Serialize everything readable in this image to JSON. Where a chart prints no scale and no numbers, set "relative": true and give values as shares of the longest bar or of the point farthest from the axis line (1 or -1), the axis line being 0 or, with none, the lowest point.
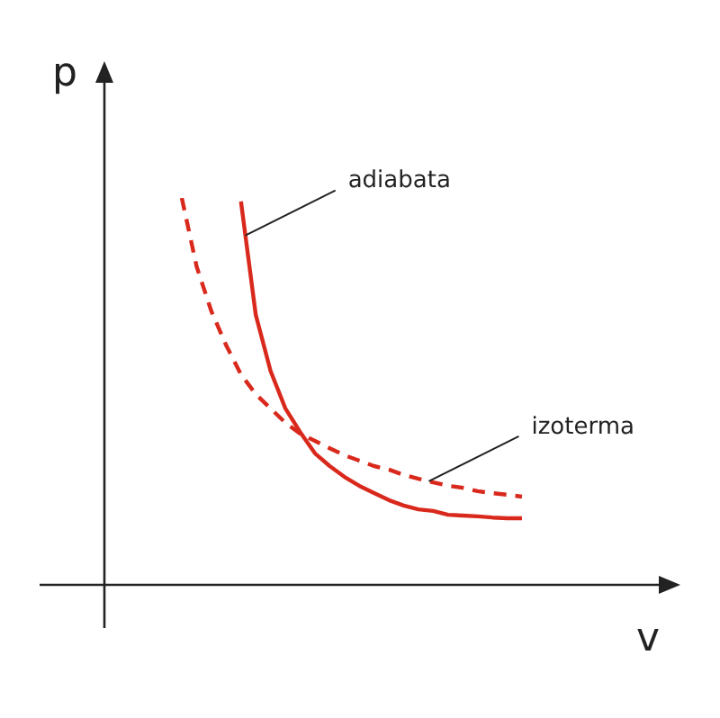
{
  "chart_data": {
    "type": "line",
    "relative": true,
    "xlabel": "v",
    "ylabel": "p",
    "categories": [
      null,
      null,
      null,
      null,
      null,
      null,
      null,
      null,
      null,
      null,
      null,
      null,
      null,
      null,
      null,
      null,
      null,
      null,
      null,
      null,
      null,
      null,
      null,
      null
    ],
    "series": [
      {
        "color": "#d9291c",
        "line_style": "solid",
        "values": [
          null,
          null,
          null,
          null,
          0.991,
          0.698,
          0.553,
          0.456,
          0.395,
          0.34,
          0.307,
          0.279,
          0.256,
          0.237,
          0.219,
          0.205,
          0.195,
          0.191,
          0.181,
          0.179,
          0.177,
          0.174,
          0.172,
          0.172
        ]
      },
      {
        "color": "#d9291c",
        "line_style": "dashed",
        "values": [
          1,
          0.823,
          0.707,
          0.619,
          0.544,
          0.493,
          0.456,
          0.419,
          0.391,
          0.372,
          0.353,
          0.335,
          0.321,
          0.307,
          0.298,
          0.284,
          0.274,
          0.265,
          0.256,
          0.251,
          0.242,
          0.237,
          0.233,
          0.228
        ]
      }
    ],
    "annotations": [
      "adiabata",
      "izoterma"
    ]
  }
}
